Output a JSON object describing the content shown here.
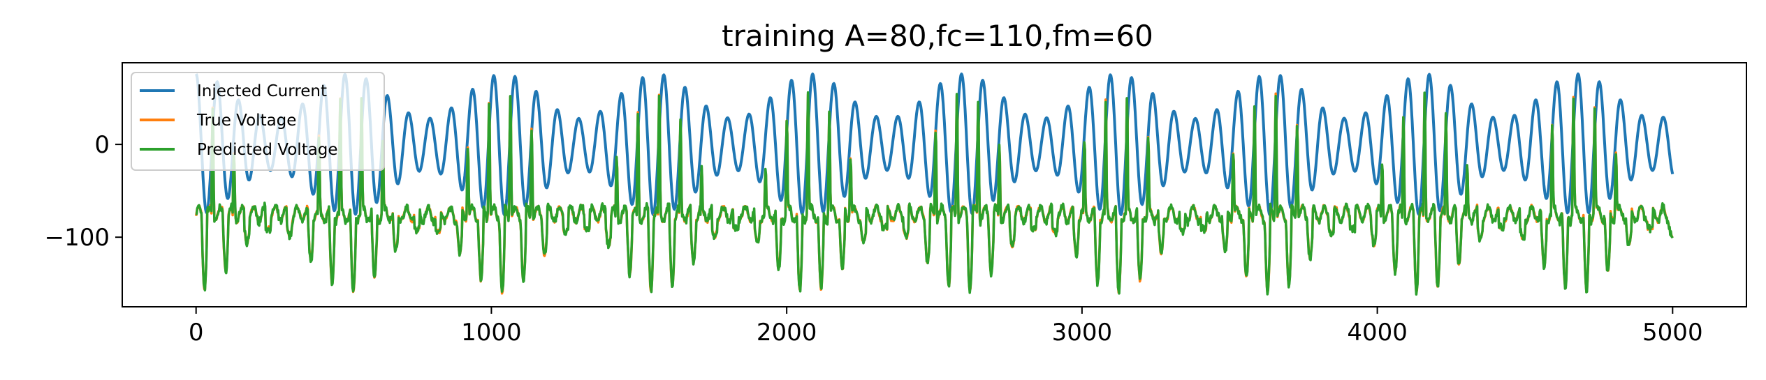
{
  "chart_data": {
    "type": "line",
    "title": "training A=80,fc=110,fm=60",
    "xlabel": "",
    "ylabel": "",
    "xlim": [
      -250,
      5250
    ],
    "ylim": [
      -175,
      88
    ],
    "xticks": [
      0,
      1000,
      2000,
      3000,
      4000,
      5000
    ],
    "xtick_labels": [
      "0",
      "1000",
      "2000",
      "3000",
      "4000",
      "5000"
    ],
    "yticks": [
      -100,
      0
    ],
    "ytick_labels": [
      "−100",
      "0"
    ],
    "grid": false,
    "legend_position": "top-left",
    "series": [
      {
        "name": "Injected Current",
        "color": "#1f77b4",
        "description_params": {
          "amplitude": 80,
          "carrier_period": 72,
          "modulation_period": 520,
          "mean": 0
        }
      },
      {
        "name": "True Voltage",
        "color": "#ff7f0e"
      },
      {
        "name": "Predicted Voltage",
        "color": "#2ca02c"
      }
    ]
  }
}
